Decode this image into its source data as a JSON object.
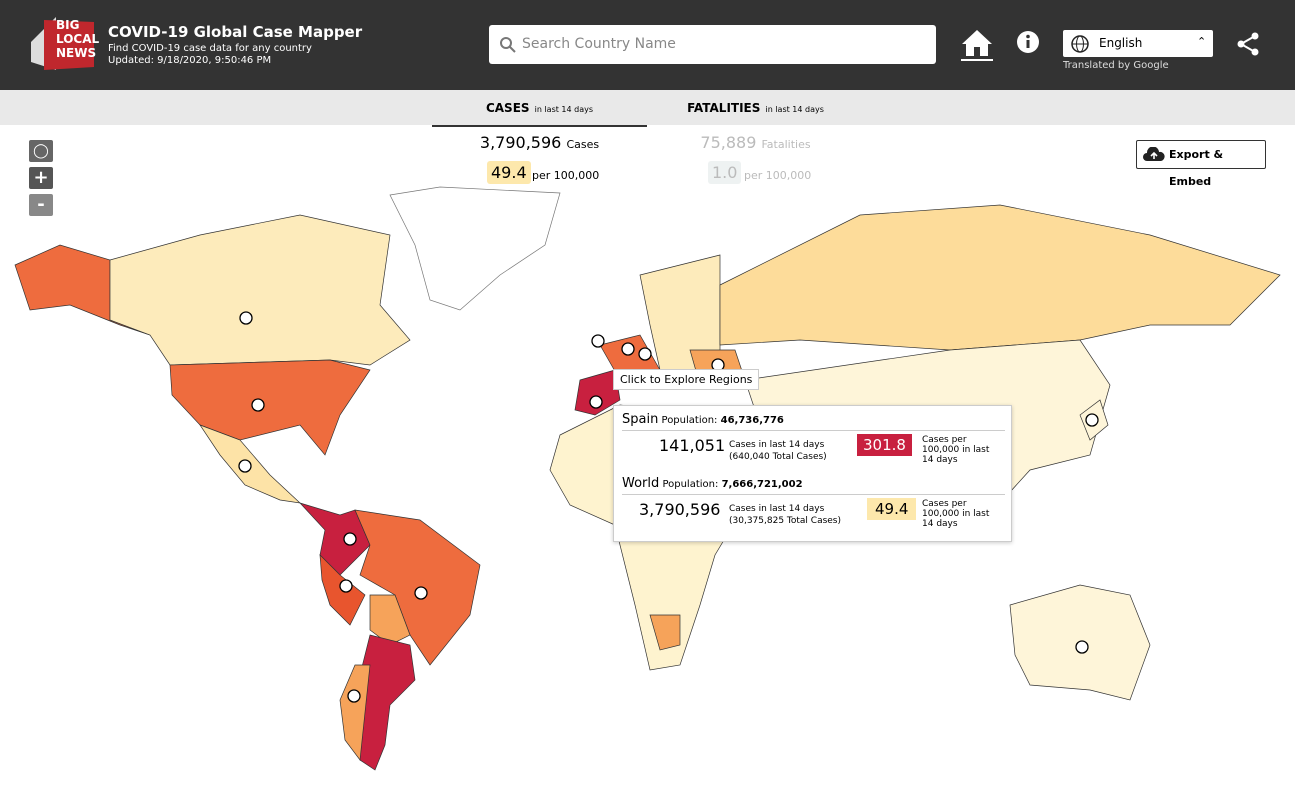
{
  "header": {
    "logo": [
      "BIG",
      "LOCAL",
      "NEWS"
    ],
    "title": "COVID-19 Global Case Mapper",
    "subtitle": "Find COVID-19 case data for any country",
    "updated": "Updated: 9/18/2020, 9:50:46 PM",
    "search_placeholder": "Search Country Name",
    "language": "English",
    "translated": "Translated by Google"
  },
  "tabs": [
    {
      "label": "CASES",
      "sub": "in last 14 days",
      "total": "3,790,596",
      "unit": "Cases",
      "rate": "49.4",
      "rate_unit": "per 100,000"
    },
    {
      "label": "FATALITIES",
      "sub": "in last 14 days",
      "total": "75,889",
      "unit": "Fatalities",
      "rate": "1.0",
      "rate_unit": "per 100,000"
    }
  ],
  "controls": {
    "zoom_in": "+",
    "zoom_out": "-",
    "export": "Export & Embed"
  },
  "tooltip": "Click to Explore Regions",
  "popup": [
    {
      "name": "Spain",
      "population_label": "Population:",
      "population": "46,736,776",
      "cases": "141,051",
      "cases_label": "Cases in last 14 days",
      "total": "(640,040 Total Cases)",
      "rate": "301.8",
      "rate_label": "Cases per 100,000 in last 14 days"
    },
    {
      "name": "World",
      "population_label": "Population:",
      "population": "7,666,721,002",
      "cases": "3,790,596",
      "cases_label": "Cases in last 14 days",
      "total": "(30,375,825 Total Cases)",
      "rate": "49.4",
      "rate_label": "Cases per 100,000 in last 14 days"
    }
  ]
}
